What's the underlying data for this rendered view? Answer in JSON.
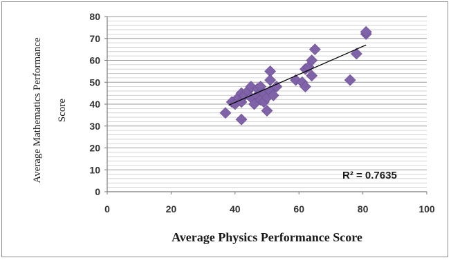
{
  "chart_data": {
    "type": "scatter",
    "xlabel": "Average Physics Performance Score",
    "ylabel_line1": "Average Mathematics Performance",
    "ylabel_line2": "Score",
    "xlim": [
      0,
      100
    ],
    "ylim": [
      0,
      80
    ],
    "x_ticks": [
      "0",
      "20",
      "40",
      "60",
      "80",
      "100"
    ],
    "y_ticks": [
      "0",
      "10",
      "20",
      "30",
      "40",
      "50",
      "60",
      "70",
      "80"
    ],
    "minor_gridlines_y_every": 2,
    "grid": true,
    "legend": "none",
    "marker_color": "#7f62a8",
    "trendline_color": "#000000",
    "r_squared_label": "R² = 0.7635",
    "trendline": {
      "x": [
        38,
        81
      ],
      "y": [
        39.5,
        67
      ]
    },
    "points": [
      {
        "x": 37,
        "y": 36
      },
      {
        "x": 42,
        "y": 33
      },
      {
        "x": 39,
        "y": 41
      },
      {
        "x": 40,
        "y": 40
      },
      {
        "x": 41,
        "y": 43
      },
      {
        "x": 42,
        "y": 45
      },
      {
        "x": 42,
        "y": 41
      },
      {
        "x": 43,
        "y": 44
      },
      {
        "x": 44,
        "y": 46
      },
      {
        "x": 45,
        "y": 48
      },
      {
        "x": 45,
        "y": 43
      },
      {
        "x": 46,
        "y": 40
      },
      {
        "x": 47,
        "y": 44
      },
      {
        "x": 47,
        "y": 47
      },
      {
        "x": 48,
        "y": 48
      },
      {
        "x": 48,
        "y": 42
      },
      {
        "x": 49,
        "y": 45
      },
      {
        "x": 49,
        "y": 41
      },
      {
        "x": 50,
        "y": 37
      },
      {
        "x": 50,
        "y": 43
      },
      {
        "x": 51,
        "y": 55
      },
      {
        "x": 51,
        "y": 51
      },
      {
        "x": 51,
        "y": 46
      },
      {
        "x": 52,
        "y": 44
      },
      {
        "x": 53,
        "y": 48
      },
      {
        "x": 59,
        "y": 51
      },
      {
        "x": 61,
        "y": 50
      },
      {
        "x": 62,
        "y": 48
      },
      {
        "x": 62,
        "y": 56
      },
      {
        "x": 63,
        "y": 57
      },
      {
        "x": 64,
        "y": 60
      },
      {
        "x": 64,
        "y": 53
      },
      {
        "x": 65,
        "y": 65
      },
      {
        "x": 76,
        "y": 51
      },
      {
        "x": 78,
        "y": 63
      },
      {
        "x": 81,
        "y": 72
      },
      {
        "x": 81,
        "y": 73
      }
    ]
  }
}
